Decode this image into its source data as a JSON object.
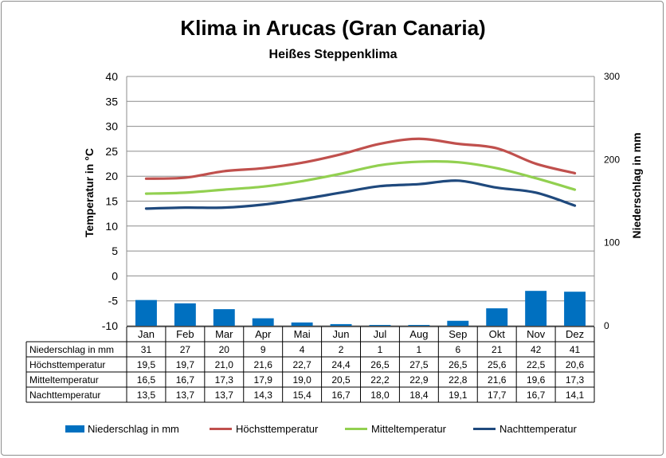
{
  "title": "Klima in Arucas (Gran Canaria)",
  "subtitle": "Heißes Steppenklima",
  "chart_data": {
    "type": "bar",
    "title": "Klima in Arucas (Gran Canaria)",
    "subtitle": "Heißes Steppenklima",
    "ylabel": "Temperatur in °C",
    "ylabel_right": "Niederschlag in mm",
    "categories": [
      "Jan",
      "Feb",
      "Mar",
      "Apr",
      "Mai",
      "Jun",
      "Jul",
      "Aug",
      "Sep",
      "Okt",
      "Nov",
      "Dez"
    ],
    "ylim": [
      -10,
      40
    ],
    "yticks": [
      "40",
      "35",
      "30",
      "25",
      "20",
      "15",
      "10",
      "5",
      "0",
      "-5",
      "-10"
    ],
    "ylim_right": [
      0,
      300
    ],
    "yticks_right": [
      "300",
      "200",
      "100",
      "0"
    ],
    "grid": true,
    "legend_position": "bottom",
    "series": [
      {
        "name": "Niederschlag in mm",
        "type": "bar",
        "axis": "right",
        "color": "#0070c0",
        "values": [
          31,
          27,
          20,
          9,
          4,
          2,
          1,
          1,
          6,
          21,
          42,
          41
        ],
        "labels": [
          "31",
          "27",
          "20",
          "9",
          "4",
          "2",
          "1",
          "1",
          "6",
          "21",
          "42",
          "41"
        ]
      },
      {
        "name": "Höchsttemperatur",
        "type": "line",
        "axis": "left",
        "color": "#c0504d",
        "values": [
          19.5,
          19.7,
          21.0,
          21.6,
          22.7,
          24.4,
          26.5,
          27.5,
          26.5,
          25.6,
          22.5,
          20.6
        ],
        "labels": [
          "19,5",
          "19,7",
          "21,0",
          "21,6",
          "22,7",
          "24,4",
          "26,5",
          "27,5",
          "26,5",
          "25,6",
          "22,5",
          "20,6"
        ]
      },
      {
        "name": "Mitteltemperatur",
        "type": "line",
        "axis": "left",
        "color": "#92d050",
        "values": [
          16.5,
          16.7,
          17.3,
          17.9,
          19.0,
          20.5,
          22.2,
          22.9,
          22.8,
          21.6,
          19.6,
          17.3
        ],
        "labels": [
          "16,5",
          "16,7",
          "17,3",
          "17,9",
          "19,0",
          "20,5",
          "22,2",
          "22,9",
          "22,8",
          "21,6",
          "19,6",
          "17,3"
        ]
      },
      {
        "name": "Nachttemperatur",
        "type": "line",
        "axis": "left",
        "color": "#1f497d",
        "values": [
          13.5,
          13.7,
          13.7,
          14.3,
          15.4,
          16.7,
          18.0,
          18.4,
          19.1,
          17.7,
          16.7,
          14.1
        ],
        "labels": [
          "13,5",
          "13,7",
          "13,7",
          "14,3",
          "15,4",
          "16,7",
          "18,0",
          "18,4",
          "19,1",
          "17,7",
          "16,7",
          "14,1"
        ]
      }
    ]
  }
}
